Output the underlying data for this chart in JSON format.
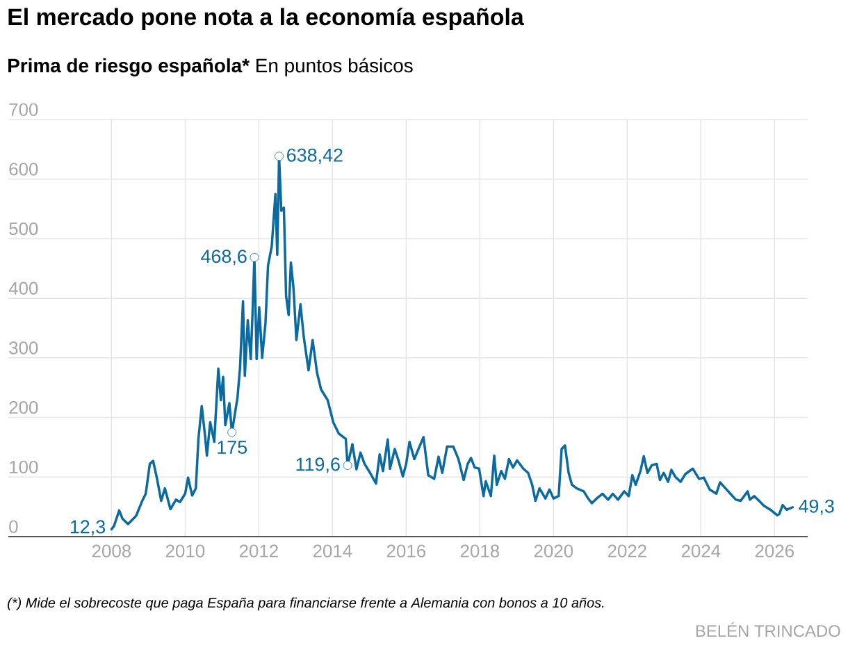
{
  "chart_data": {
    "type": "line",
    "title": "El mercado pone nota a la economía española",
    "subtitle": "Prima de riesgo española*",
    "ylabel": "En puntos básicos",
    "x": [
      2008.0,
      2008.07,
      2008.21,
      2008.3,
      2008.45,
      2008.67,
      2008.82,
      2008.93,
      2009.04,
      2009.13,
      2009.23,
      2009.35,
      2009.45,
      2009.6,
      2009.75,
      2009.86,
      2010.0,
      2010.08,
      2010.19,
      2010.29,
      2010.36,
      2010.45,
      2010.54,
      2010.59,
      2010.68,
      2010.79,
      2010.9,
      2010.97,
      2011.03,
      2011.09,
      2011.2,
      2011.27,
      2011.42,
      2011.49,
      2011.57,
      2011.62,
      2011.7,
      2011.78,
      2011.83,
      2011.88,
      2011.94,
      2012.01,
      2012.09,
      2012.18,
      2012.25,
      2012.35,
      2012.45,
      2012.5,
      2012.55,
      2012.61,
      2012.68,
      2012.74,
      2012.81,
      2012.87,
      2012.94,
      2013.02,
      2013.13,
      2013.22,
      2013.35,
      2013.46,
      2013.58,
      2013.69,
      2013.87,
      2014.02,
      2014.17,
      2014.36,
      2014.41,
      2014.54,
      2014.65,
      2014.76,
      2014.87,
      2015.02,
      2015.18,
      2015.28,
      2015.37,
      2015.5,
      2015.56,
      2015.69,
      2015.78,
      2015.91,
      2016.0,
      2016.09,
      2016.22,
      2016.36,
      2016.47,
      2016.6,
      2016.76,
      2016.88,
      2016.98,
      2017.11,
      2017.28,
      2017.42,
      2017.56,
      2017.67,
      2017.76,
      2017.86,
      2017.98,
      2018.1,
      2018.16,
      2018.3,
      2018.39,
      2018.46,
      2018.58,
      2018.68,
      2018.79,
      2018.9,
      2019.01,
      2019.18,
      2019.31,
      2019.42,
      2019.51,
      2019.62,
      2019.78,
      2019.89,
      2020.0,
      2020.14,
      2020.22,
      2020.31,
      2020.41,
      2020.5,
      2020.63,
      2020.82,
      2020.94,
      2021.04,
      2021.17,
      2021.33,
      2021.48,
      2021.61,
      2021.75,
      2021.92,
      2022.04,
      2022.14,
      2022.23,
      2022.36,
      2022.45,
      2022.55,
      2022.67,
      2022.8,
      2022.89,
      2022.99,
      2023.11,
      2023.2,
      2023.31,
      2023.45,
      2023.58,
      2023.78,
      2023.95,
      2024.08,
      2024.24,
      2024.42,
      2024.52,
      2024.64,
      2024.8,
      2024.95,
      2025.08,
      2025.27,
      2025.33,
      2025.45,
      2025.58,
      2025.71,
      2025.89,
      2026.07,
      2026.13,
      2026.22,
      2026.33,
      2026.49
    ],
    "values": [
      12.3,
      18,
      44,
      30,
      21,
      35,
      58,
      72,
      122,
      127,
      99,
      60,
      81,
      46,
      62,
      58,
      72,
      99,
      69,
      81,
      164,
      219,
      169,
      136,
      192,
      159,
      282,
      229,
      268,
      187,
      224,
      175,
      233,
      284,
      395,
      270,
      363,
      298,
      376,
      468.6,
      298,
      385,
      300,
      358,
      455,
      487,
      575,
      473,
      638.42,
      547,
      552,
      404,
      372,
      460,
      418,
      330,
      390,
      335,
      279,
      330,
      275,
      247,
      229,
      192,
      173,
      164,
      119.6,
      155,
      113,
      141,
      122,
      107,
      89,
      138,
      110,
      163,
      114,
      147,
      130,
      101,
      122,
      159,
      130,
      151,
      167,
      103,
      97,
      134,
      107,
      151,
      151,
      130,
      95,
      122,
      132,
      116,
      114,
      68,
      93,
      68,
      136,
      87,
      110,
      97,
      130,
      116,
      128,
      114,
      107,
      87,
      60,
      81,
      64,
      79,
      64,
      68,
      147,
      153,
      107,
      87,
      81,
      76,
      64,
      56,
      64,
      72,
      62,
      72,
      62,
      76,
      68,
      103,
      87,
      110,
      135,
      107,
      120,
      122,
      95,
      107,
      92,
      112,
      100,
      92,
      105,
      114,
      97,
      99,
      79,
      72,
      91,
      83,
      72,
      62,
      60,
      76,
      62,
      68,
      60,
      52,
      45,
      36,
      38,
      53,
      45,
      49.3
    ],
    "color": "#0b6a9f",
    "xlim": [
      2005.2,
      2026.9
    ],
    "ylim": [
      0,
      700
    ],
    "xticks": [
      2008,
      2010,
      2012,
      2014,
      2016,
      2018,
      2020,
      2022,
      2024,
      2026
    ],
    "yticks": [
      0,
      100,
      200,
      300,
      400,
      500,
      600,
      700
    ],
    "grid": true,
    "annotations": [
      {
        "text": "12,3",
        "x": 2008.0,
        "y": 12.3
      },
      {
        "text": "175",
        "x": 2011.27,
        "y": 175
      },
      {
        "text": "468,6",
        "x": 2011.88,
        "y": 468.6
      },
      {
        "text": "638,42",
        "x": 2012.55,
        "y": 638.42
      },
      {
        "text": "119,6",
        "x": 2014.41,
        "y": 119.6
      },
      {
        "text": "49,3",
        "x": 2026.49,
        "y": 49.3
      },
      "(*) Mide el sobrecoste que paga España para financiarse frente a Alemania con bonos a 10 años.",
      "BELÉN TRINCADO"
    ]
  }
}
